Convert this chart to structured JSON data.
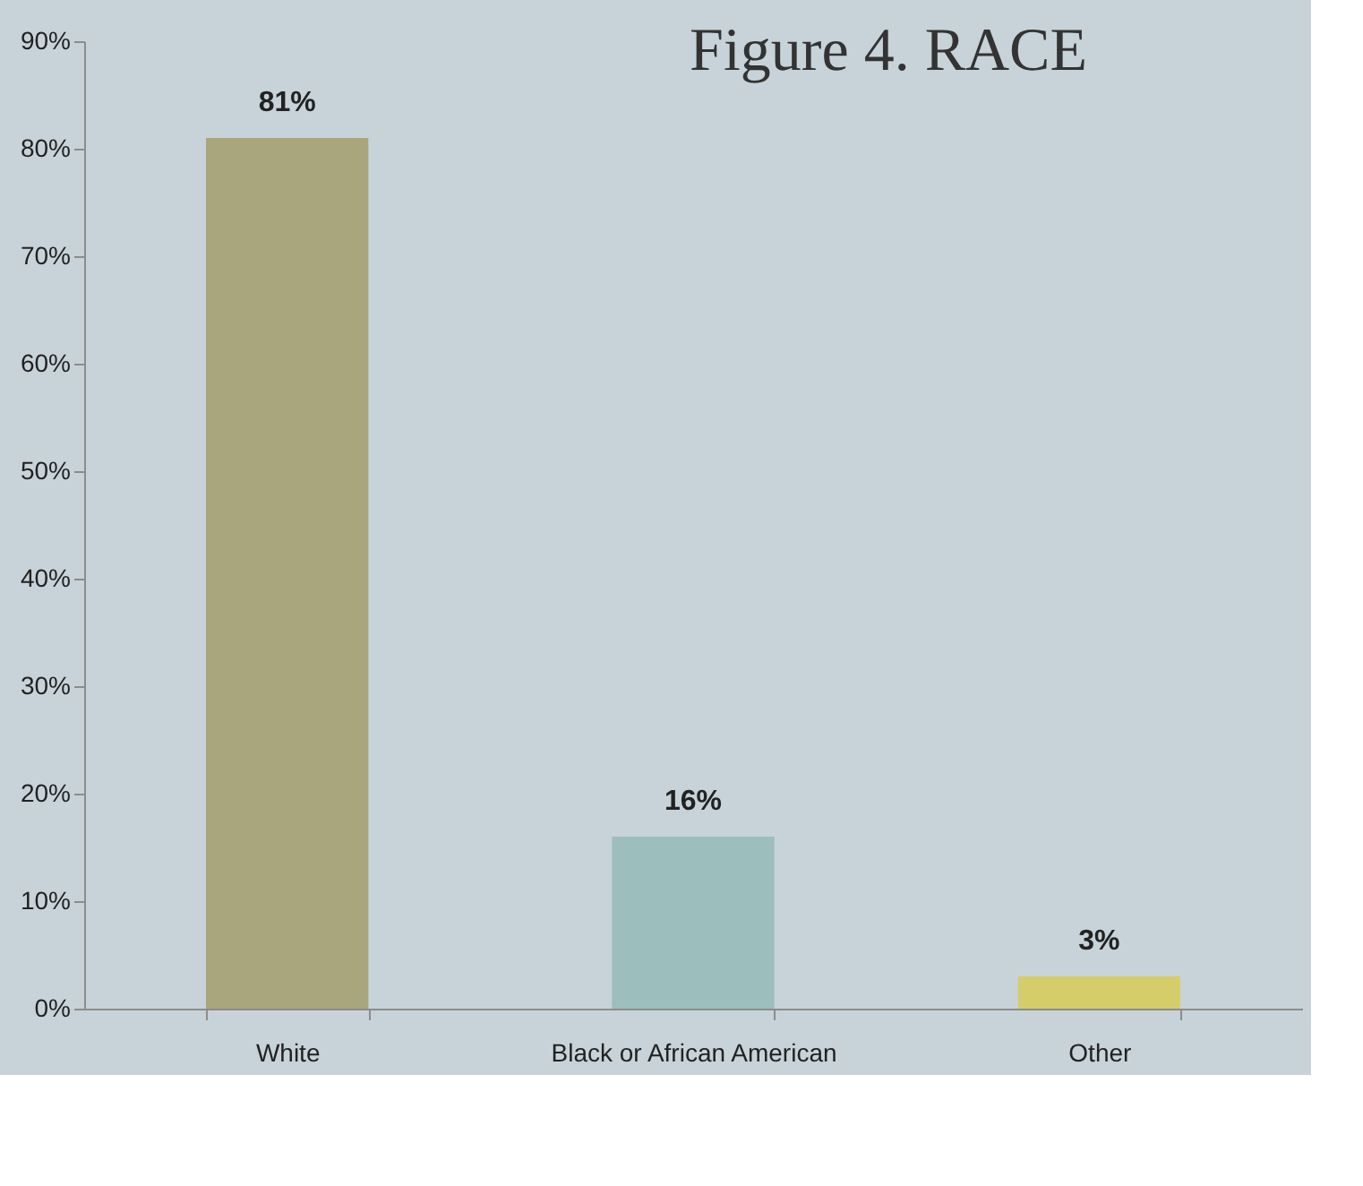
{
  "chart_data": {
    "type": "bar",
    "title": "Figure 4. RACE",
    "categories": [
      "White",
      "Black or African American",
      "Other"
    ],
    "values": [
      81,
      16,
      3
    ],
    "value_labels": [
      "81%",
      "16%",
      "3%"
    ],
    "colors": [
      "#a9a57c",
      "#9cbebd",
      "#d5cd6a"
    ],
    "ylim": [
      0,
      90
    ],
    "yticks": [
      {
        "value": 0,
        "label": "0%"
      },
      {
        "value": 10,
        "label": "10%"
      },
      {
        "value": 20,
        "label": "20%"
      },
      {
        "value": 30,
        "label": "30%"
      },
      {
        "value": 40,
        "label": "40%"
      },
      {
        "value": 50,
        "label": "50%"
      },
      {
        "value": 60,
        "label": "60%"
      },
      {
        "value": 70,
        "label": "70%"
      },
      {
        "value": 80,
        "label": "80%"
      },
      {
        "value": 90,
        "label": "90%"
      }
    ],
    "grid": false,
    "legend": false
  }
}
